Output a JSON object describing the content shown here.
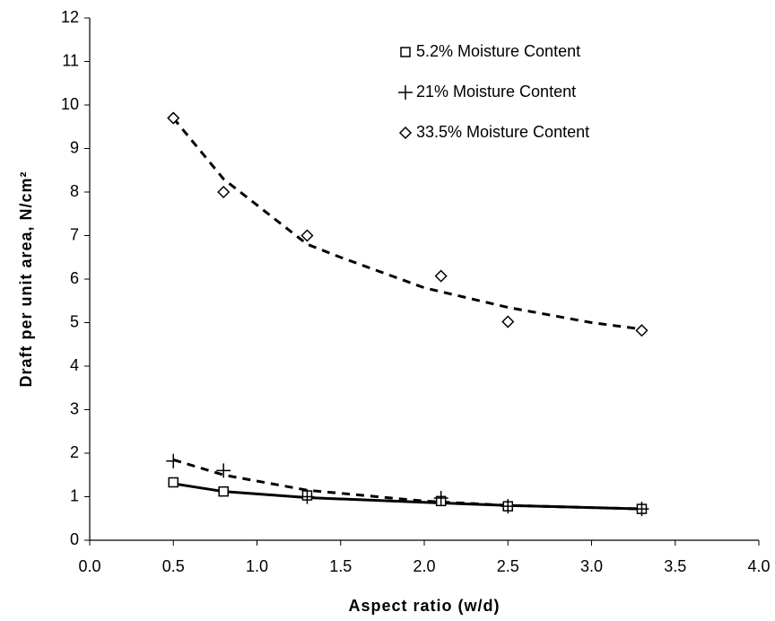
{
  "chart_data": {
    "type": "scatter",
    "x_label": "Aspect ratio (w/d)",
    "y_label": "Draft per unit area, N/cm²",
    "xlim": [
      0,
      4
    ],
    "ylim": [
      0,
      12
    ],
    "xticks": [
      {
        "value": 0,
        "label": "0.0"
      },
      0.5,
      {
        "value": 1,
        "label": "1.0"
      },
      1.5,
      {
        "value": 2,
        "label": "2.0"
      },
      2.5,
      {
        "value": 3,
        "label": "3.0"
      },
      3.5,
      {
        "value": 4,
        "label": "4.0"
      }
    ],
    "yticks": [
      0,
      1,
      2,
      3,
      4,
      5,
      6,
      7,
      8,
      9,
      10,
      11,
      12
    ],
    "grid": false,
    "legend": "top-right",
    "series": [
      {
        "name": "5.2% Moisture Content",
        "color": "#000000",
        "marker": "square",
        "x": [
          0.5,
          0.8,
          1.3,
          2.1,
          2.5,
          3.3
        ],
        "values": [
          1.33,
          1.12,
          1.03,
          0.9,
          0.78,
          0.72
        ]
      },
      {
        "name": "21% Moisture Content",
        "color": "#000000",
        "marker": "plus",
        "x": [
          0.5,
          0.8,
          1.3,
          2.1,
          2.5,
          3.3
        ],
        "values": [
          1.82,
          1.6,
          1.0,
          0.97,
          0.78,
          0.72
        ]
      },
      {
        "name": "33.5% Moisture Content",
        "color": "#000000",
        "marker": "diamond",
        "x": [
          0.5,
          0.8,
          1.3,
          2.1,
          2.5,
          3.3
        ],
        "values": [
          9.7,
          8.0,
          7.0,
          6.07,
          5.02,
          4.82
        ]
      }
    ],
    "trendlines": [
      {
        "color": "#000000",
        "dash": "solid",
        "x": [
          0.5,
          0.8,
          1.3,
          2.0,
          2.5,
          3.3
        ],
        "values": [
          1.3,
          1.12,
          0.98,
          0.87,
          0.8,
          0.72
        ]
      },
      {
        "color": "#000000",
        "dash": "dashed",
        "x": [
          0.5,
          0.8,
          1.3,
          2.0,
          2.5,
          3.3
        ],
        "values": [
          1.85,
          1.5,
          1.15,
          0.9,
          0.8,
          0.72
        ]
      },
      {
        "color": "#000000",
        "dash": "dashed",
        "x": [
          0.5,
          0.8,
          1.3,
          1.5,
          2.0,
          2.5,
          3.0,
          3.3
        ],
        "values": [
          9.7,
          8.3,
          6.8,
          6.5,
          5.8,
          5.35,
          5.0,
          4.85
        ]
      }
    ]
  }
}
